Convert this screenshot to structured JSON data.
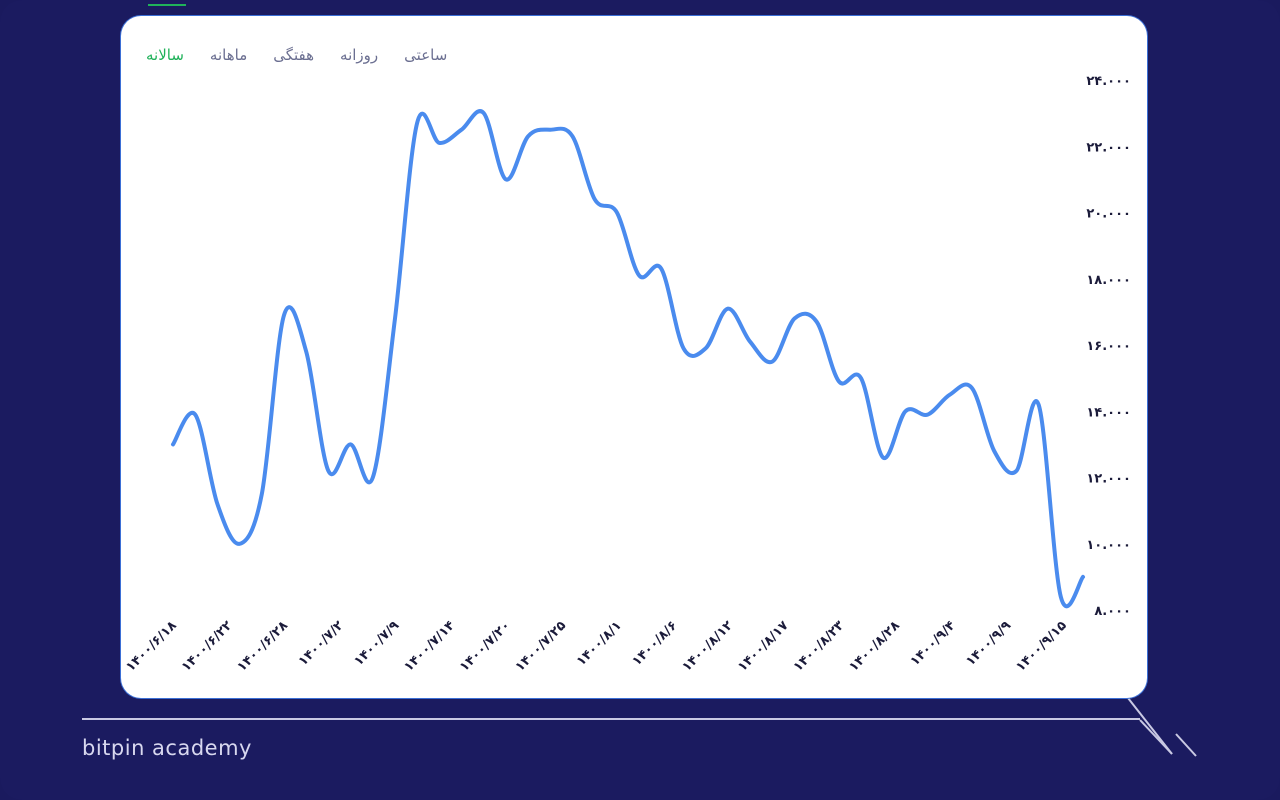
{
  "tabs": [
    {
      "label": "ساعتی",
      "active": false
    },
    {
      "label": "روزانه",
      "active": false
    },
    {
      "label": "هفتگی",
      "active": false
    },
    {
      "label": "ماهانه",
      "active": false
    },
    {
      "label": "سالانه",
      "active": true
    }
  ],
  "brand": "bitpin academy",
  "colors": {
    "background": "#1b1b60",
    "card": "#ffffff",
    "line": "#4a8bee",
    "active_tab": "#20b25a"
  },
  "chart_data": {
    "type": "line",
    "ylim": [
      8000,
      24000
    ],
    "yticks": [
      8000,
      10000,
      12000,
      14000,
      16000,
      18000,
      20000,
      22000,
      24000
    ],
    "ytick_labels": [
      "۸.۰۰۰",
      "۱۰.۰۰۰",
      "۱۲.۰۰۰",
      "۱۴.۰۰۰",
      "۱۶.۰۰۰",
      "۱۸.۰۰۰",
      "۲۰.۰۰۰",
      "۲۲.۰۰۰",
      "۲۴.۰۰۰"
    ],
    "xtick_labels": [
      "۱۴۰۰/۶/۱۸",
      "۱۴۰۰/۶/۲۲",
      "۱۴۰۰/۶/۲۸",
      "۱۴۰۰/۷/۲",
      "۱۴۰۰/۷/۹",
      "۱۴۰۰/۷/۱۴",
      "۱۴۰۰/۷/۲۰",
      "۱۴۰۰/۷/۲۵",
      "۱۴۰۰/۸/۱",
      "۱۴۰۰/۸/۶",
      "۱۴۰۰/۸/۱۲",
      "۱۴۰۰/۸/۱۷",
      "۱۴۰۰/۸/۲۳",
      "۱۴۰۰/۸/۲۸",
      "۱۴۰۰/۹/۴",
      "۱۴۰۰/۹/۹",
      "۱۴۰۰/۹/۱۵"
    ],
    "series": [
      {
        "values": [
          13000,
          13900,
          11200,
          10000,
          11500,
          16900,
          15800,
          12200,
          13000,
          12000,
          16800,
          22700,
          22100,
          22500,
          23000,
          21000,
          22300,
          22500,
          22300,
          20400,
          20000,
          18100,
          18300,
          15900,
          15900,
          17100,
          16100,
          15500,
          16800,
          16700,
          14900,
          15000,
          12600,
          14000,
          13900,
          14500,
          14700,
          12800,
          12200,
          14200,
          8400,
          9000
        ]
      }
    ],
    "grid": false
  }
}
